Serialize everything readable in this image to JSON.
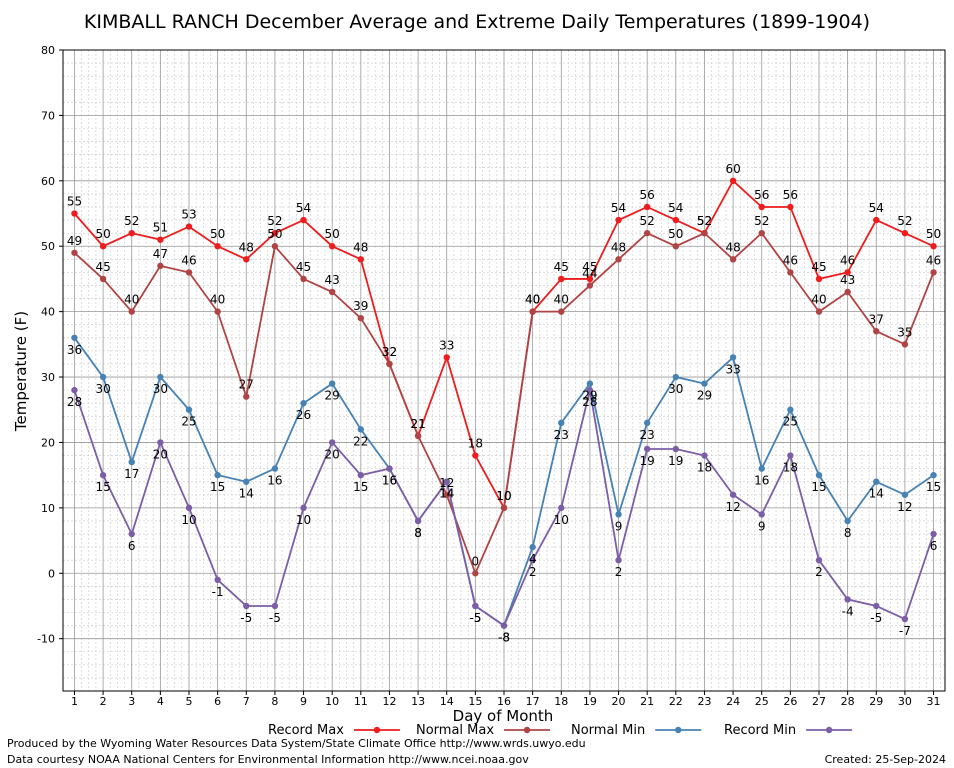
{
  "chart_data": {
    "type": "line",
    "title": "KIMBALL RANCH December Average and Extreme Daily Temperatures (1899-1904)",
    "xlabel": "Day of Month",
    "ylabel": "Temperature (F)",
    "xlim": [
      0.6,
      31.4
    ],
    "ylim": [
      -18,
      80
    ],
    "yticks": [
      -10,
      0,
      10,
      20,
      30,
      40,
      50,
      60,
      70,
      80
    ],
    "grid": true,
    "legend": "bottom",
    "x": [
      1,
      2,
      3,
      4,
      5,
      6,
      7,
      8,
      9,
      10,
      11,
      12,
      13,
      14,
      15,
      16,
      17,
      18,
      19,
      20,
      21,
      22,
      23,
      24,
      25,
      26,
      27,
      28,
      29,
      30,
      31
    ],
    "series": [
      {
        "name": "Record Max",
        "color": "#ee1c1c",
        "label_position": "above",
        "values": [
          55,
          50,
          52,
          51,
          53,
          50,
          48,
          52,
          54,
          50,
          48,
          32,
          21,
          33,
          18,
          10,
          40,
          45,
          45,
          54,
          56,
          54,
          52,
          60,
          56,
          56,
          45,
          46,
          54,
          52,
          50
        ]
      },
      {
        "name": "Normal Max",
        "color": "#b04444",
        "label_position": "above",
        "values": [
          49,
          45,
          40,
          47,
          46,
          40,
          27,
          50,
          45,
          43,
          39,
          32,
          21,
          12,
          0,
          10,
          40,
          40,
          44,
          48,
          52,
          50,
          52,
          48,
          52,
          46,
          40,
          43,
          37,
          35,
          46
        ]
      },
      {
        "name": "Normal Min",
        "color": "#4682b4",
        "label_position": "below",
        "values": [
          36,
          30,
          17,
          30,
          25,
          15,
          14,
          16,
          26,
          29,
          22,
          16,
          8,
          14,
          -5,
          -8,
          4,
          23,
          29,
          9,
          23,
          30,
          29,
          33,
          16,
          25,
          15,
          8,
          14,
          12,
          15
        ]
      },
      {
        "name": "Record Min",
        "color": "#7b5ea7",
        "label_position": "below",
        "values": [
          28,
          15,
          6,
          20,
          10,
          -1,
          -5,
          -5,
          10,
          20,
          15,
          16,
          8,
          14,
          -5,
          -8,
          2,
          10,
          28,
          2,
          19,
          19,
          18,
          12,
          9,
          18,
          2,
          -4,
          -5,
          -7,
          6
        ]
      }
    ]
  },
  "footer": {
    "producer": "Produced by the Wyoming Water Resources Data System/State Climate Office http://www.wrds.uwyo.edu",
    "courtesy": "Data courtesy NOAA National Centers for Environmental Information http://www.ncei.noaa.gov",
    "created": "Created:  25-Sep-2024"
  }
}
